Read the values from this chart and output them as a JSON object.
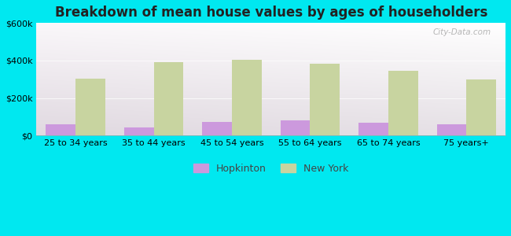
{
  "title": "Breakdown of mean house values by ages of householders",
  "categories": [
    "25 to 34 years",
    "35 to 44 years",
    "45 to 54 years",
    "55 to 64 years",
    "65 to 74 years",
    "75 years+"
  ],
  "hopkinton_values": [
    60000,
    45000,
    72000,
    80000,
    68000,
    62000
  ],
  "newyork_values": [
    305000,
    390000,
    405000,
    385000,
    345000,
    300000
  ],
  "hopkinton_color": "#cc99dd",
  "newyork_color": "#c8d4a0",
  "background_outer": "#00e8f0",
  "ylim": [
    0,
    600000
  ],
  "yticks": [
    0,
    200000,
    400000,
    600000
  ],
  "ytick_labels": [
    "$0",
    "$200k",
    "$400k",
    "$600k"
  ],
  "title_fontsize": 12,
  "legend_labels": [
    "Hopkinton",
    "New York"
  ],
  "bar_width": 0.38,
  "watermark": "City-Data.com"
}
